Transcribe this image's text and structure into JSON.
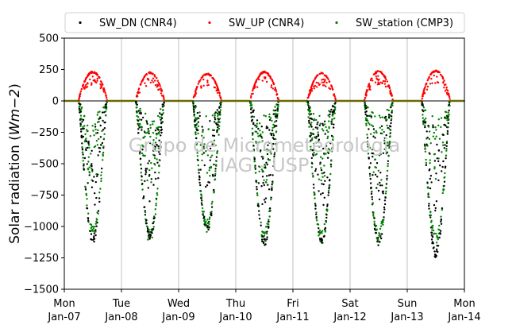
{
  "chart_data": {
    "type": "scatter",
    "title": "",
    "xlabel": "",
    "ylabel": "Solar radiation ($Wm{-2}$)",
    "ylabel_plain": "Solar radiation (",
    "ylabel_math": "Wm−2",
    "ylabel_close": ")",
    "ylim": [
      -1500,
      500
    ],
    "yticks": [
      -1500,
      -1250,
      -1000,
      -750,
      -500,
      -250,
      0,
      250,
      500
    ],
    "xlim_days": [
      0,
      7
    ],
    "x_tick_labels": [
      {
        "day": "Mon",
        "date": "Jan-07"
      },
      {
        "day": "Tue",
        "date": "Jan-08"
      },
      {
        "day": "Wed",
        "date": "Jan-09"
      },
      {
        "day": "Thu",
        "date": "Jan-10"
      },
      {
        "day": "Fri",
        "date": "Jan-11"
      },
      {
        "day": "Sat",
        "date": "Jan-12"
      },
      {
        "day": "Sun",
        "date": "Jan-13"
      },
      {
        "day": "Mon",
        "date": "Jan-14"
      }
    ],
    "grid": "vertical",
    "legend_position": "top",
    "zero_line": true,
    "watermark": [
      "Grupo de Micrometeorologia",
      "IAG - USP"
    ],
    "series": [
      {
        "name": "SW_DN (CNR4)",
        "color": "#000000",
        "daily_min": [
          -1140,
          -1110,
          -1050,
          -1160,
          -1150,
          -1150,
          -1250
        ]
      },
      {
        "name": "SW_UP (CNR4)",
        "color": "#ff0000",
        "daily_max": [
          235,
          230,
          220,
          235,
          225,
          240,
          245
        ]
      },
      {
        "name": "SW_station (CMP3)",
        "color": "#008000",
        "daily_min": [
          -1100,
          -1140,
          -1050,
          -1130,
          -1150,
          -1130,
          -1160
        ]
      }
    ]
  }
}
